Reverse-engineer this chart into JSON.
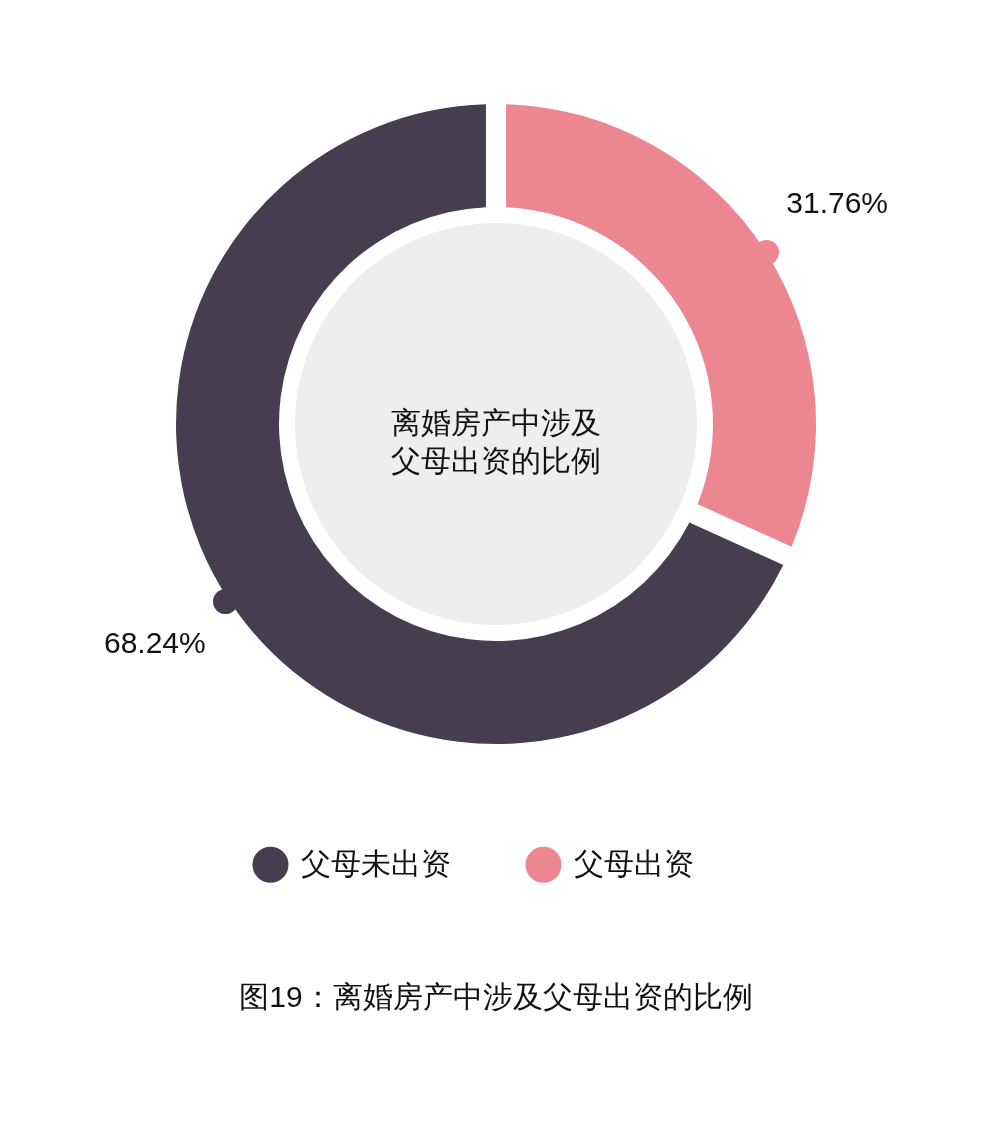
{
  "chart_data": {
    "type": "donut",
    "title": "离婚房产中涉及父母出资的比例",
    "categories": [
      "父母未出资",
      "父母出资"
    ],
    "values": [
      68.24,
      31.76
    ],
    "colors": [
      "#463e50",
      "#ec8690"
    ],
    "value_labels": [
      "68.24%",
      "31.76%"
    ],
    "legend": "bottom",
    "annotations": [
      "图19：离婚房产中涉及父母出资的比例"
    ]
  }
}
